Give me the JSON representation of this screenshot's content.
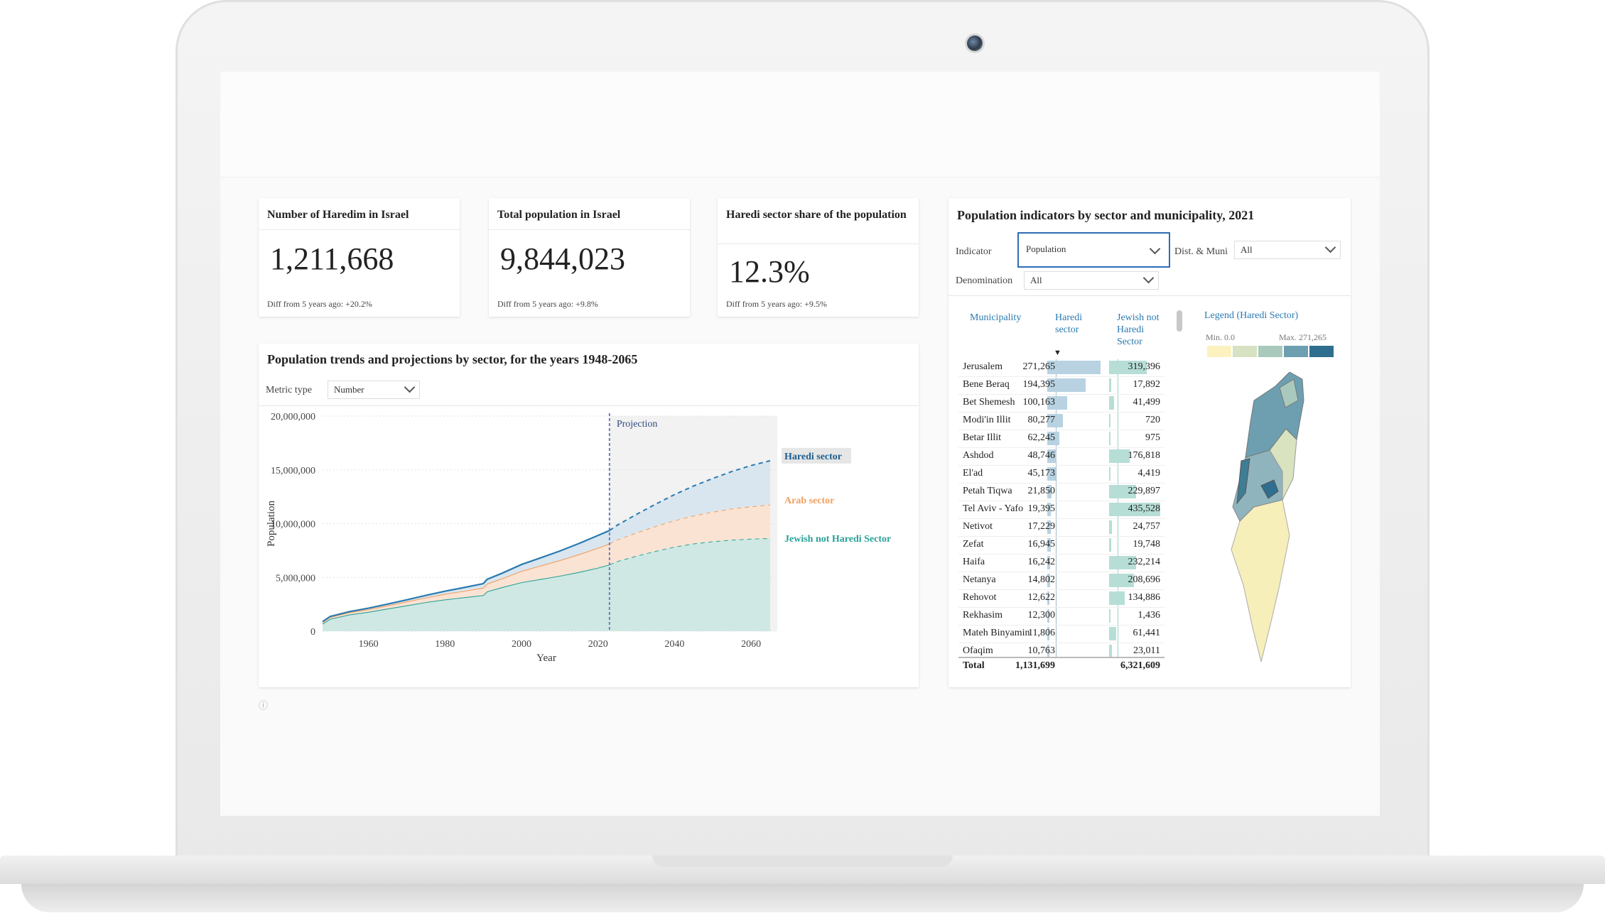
{
  "kpis": [
    {
      "title": "Number of Haredim in Israel",
      "value": "1,211,668",
      "diff": "Diff from 5 years ago: +20.2%"
    },
    {
      "title": "Total population in Israel",
      "value": "9,844,023",
      "diff": "Diff from 5 years ago: +9.8%"
    },
    {
      "title": "Haredi sector share of the population",
      "value": "12.3%",
      "diff": "Diff from 5 years ago: +9.5%"
    }
  ],
  "trends": {
    "title": "Population trends and projections by sector, for the years 1948-2065",
    "metric_label": "Metric type",
    "metric_value": "Number"
  },
  "chart_data": {
    "type": "area",
    "stacked": true,
    "title": "Population trends and projections by sector, for the years 1948-2065",
    "xlabel": "Year",
    "ylabel": "Population",
    "xlim": [
      1948,
      2065
    ],
    "ylim": [
      0,
      20000000
    ],
    "x_ticks": [
      "1960",
      "1980",
      "2000",
      "2020",
      "2040",
      "2060"
    ],
    "y_ticks": [
      "20,000,000",
      "15,000,000",
      "10,000,000",
      "5,000,000",
      "0"
    ],
    "projection_start": 2023,
    "projection_label": "Projection",
    "grid": true,
    "x": [
      1948,
      1950,
      1955,
      1960,
      1965,
      1970,
      1975,
      1980,
      1985,
      1990,
      1991,
      1995,
      2000,
      2005,
      2010,
      2015,
      2020,
      2023,
      2025,
      2030,
      2035,
      2040,
      2045,
      2050,
      2055,
      2060,
      2065
    ],
    "series": [
      {
        "name": "Jewish not Haredi Sector",
        "color": "#2aa198",
        "values": [
          700000,
          1150000,
          1550000,
          1800000,
          2100000,
          2400000,
          2700000,
          2950000,
          3150000,
          3350000,
          3700000,
          4100000,
          4550000,
          4850000,
          5150000,
          5500000,
          5900000,
          6200000,
          6500000,
          7000000,
          7450000,
          7850000,
          8150000,
          8350000,
          8500000,
          8600000,
          8650000
        ]
      },
      {
        "name": "Arab sector",
        "color": "#f0a060",
        "values": [
          150000,
          170000,
          200000,
          240000,
          290000,
          360000,
          430000,
          520000,
          600000,
          690000,
          720000,
          820000,
          1050000,
          1250000,
          1450000,
          1650000,
          1850000,
          1950000,
          2000000,
          2150000,
          2300000,
          2450000,
          2600000,
          2750000,
          2900000,
          3000000,
          3100000
        ]
      },
      {
        "name": "Haredi sector",
        "color": "#2a7ab0",
        "values": [
          40000,
          50000,
          70000,
          100000,
          130000,
          160000,
          200000,
          250000,
          310000,
          380000,
          400000,
          480000,
          600000,
          720000,
          850000,
          1000000,
          1150000,
          1210000,
          1350000,
          1700000,
          2050000,
          2400000,
          2750000,
          3100000,
          3450000,
          3800000,
          4100000
        ]
      }
    ]
  },
  "municipality_panel": {
    "title": "Population indicators by sector and municipality, 2021",
    "indicator_label": "Indicator",
    "indicator_value": "Population",
    "district_label": "Dist. & Muni",
    "district_value": "All",
    "denomination_label": "Denomination",
    "denomination_value": "All",
    "columns": [
      "Municipality",
      "Haredi sector",
      "Jewish not Haredi Sector"
    ],
    "sort_indicator": "▼",
    "rows": [
      {
        "municipality": "Jerusalem",
        "haredi": "271,265",
        "haredi_num": 271265,
        "jewish": "319,396",
        "jewish_num": 319396
      },
      {
        "municipality": "Bene Beraq",
        "haredi": "194,395",
        "haredi_num": 194395,
        "jewish": "17,892",
        "jewish_num": 17892
      },
      {
        "municipality": "Bet Shemesh",
        "haredi": "100,163",
        "haredi_num": 100163,
        "jewish": "41,499",
        "jewish_num": 41499
      },
      {
        "municipality": "Modi'in Illit",
        "haredi": "80,277",
        "haredi_num": 80277,
        "jewish": "720",
        "jewish_num": 720
      },
      {
        "municipality": "Betar Illit",
        "haredi": "62,245",
        "haredi_num": 62245,
        "jewish": "975",
        "jewish_num": 975
      },
      {
        "municipality": "Ashdod",
        "haredi": "48,746",
        "haredi_num": 48746,
        "jewish": "176,818",
        "jewish_num": 176818
      },
      {
        "municipality": "El'ad",
        "haredi": "45,173",
        "haredi_num": 45173,
        "jewish": "4,419",
        "jewish_num": 4419
      },
      {
        "municipality": "Petah Tiqwa",
        "haredi": "21,850",
        "haredi_num": 21850,
        "jewish": "229,897",
        "jewish_num": 229897
      },
      {
        "municipality": "Tel Aviv - Yafo",
        "haredi": "19,395",
        "haredi_num": 19395,
        "jewish": "435,528",
        "jewish_num": 435528
      },
      {
        "municipality": "Netivot",
        "haredi": "17,229",
        "haredi_num": 17229,
        "jewish": "24,757",
        "jewish_num": 24757
      },
      {
        "municipality": "Zefat",
        "haredi": "16,945",
        "haredi_num": 16945,
        "jewish": "19,748",
        "jewish_num": 19748
      },
      {
        "municipality": "Haifa",
        "haredi": "16,242",
        "haredi_num": 16242,
        "jewish": "232,214",
        "jewish_num": 232214
      },
      {
        "municipality": "Netanya",
        "haredi": "14,802",
        "haredi_num": 14802,
        "jewish": "208,696",
        "jewish_num": 208696
      },
      {
        "municipality": "Rehovot",
        "haredi": "12,622",
        "haredi_num": 12622,
        "jewish": "134,886",
        "jewish_num": 134886
      },
      {
        "municipality": "Rekhasim",
        "haredi": "12,300",
        "haredi_num": 12300,
        "jewish": "1,436",
        "jewish_num": 1436
      },
      {
        "municipality": "Mateh Binyamin",
        "haredi": "11,806",
        "haredi_num": 11806,
        "jewish": "61,441",
        "jewish_num": 61441
      },
      {
        "municipality": "Ofaqim",
        "haredi": "10,763",
        "haredi_num": 10763,
        "jewish": "23,011",
        "jewish_num": 23011
      }
    ],
    "total": {
      "label": "Total",
      "haredi": "1,131,699",
      "jewish": "6,321,609"
    },
    "legend": {
      "title": "Legend (Haredi Sector)",
      "min_label": "Min. 0.0",
      "max_label": "Max. 271,265",
      "colors": [
        "#fbf2c0",
        "#d6e2c2",
        "#a9c9bd",
        "#6d9fb0",
        "#2f6e8e"
      ]
    }
  },
  "colors": {
    "accent": "#2a7ab0",
    "haredi_bar": "#b8d2e2",
    "jewish_bar": "#b6ded6"
  }
}
